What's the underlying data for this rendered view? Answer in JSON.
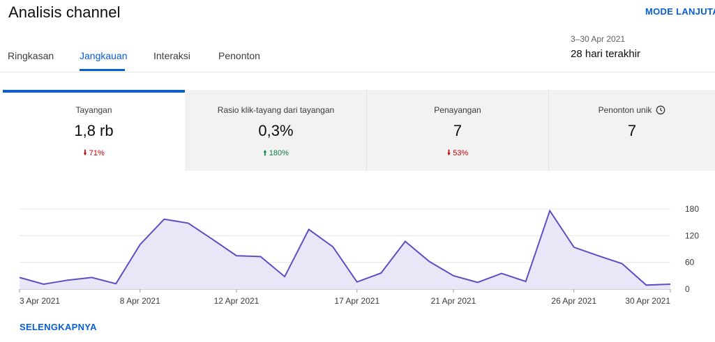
{
  "header": {
    "title": "Analisis channel",
    "advanced_mode": "MODE LANJUTAN"
  },
  "tabs": [
    {
      "label": "Ringkasan",
      "active": false
    },
    {
      "label": "Jangkauan",
      "active": true
    },
    {
      "label": "Interaksi",
      "active": false
    },
    {
      "label": "Penonton",
      "active": false
    }
  ],
  "date_range": {
    "range": "3–30 Apr 2021",
    "period": "28 hari terakhir"
  },
  "metrics": [
    {
      "label": "Tayangan",
      "value": "1,8 rb",
      "change": "71%",
      "direction": "down",
      "selected": true
    },
    {
      "label": "Rasio klik-tayang dari tayangan",
      "value": "0,3%",
      "change": "180%",
      "direction": "up",
      "selected": false
    },
    {
      "label": "Penayangan",
      "value": "7",
      "change": "53%",
      "direction": "down",
      "selected": false
    },
    {
      "label": "Penonton unik",
      "value": "7",
      "change": "",
      "direction": "",
      "selected": false,
      "icon": "clock-icon"
    }
  ],
  "chart_data": {
    "type": "area",
    "x": [
      "3 Apr",
      "4 Apr",
      "5 Apr",
      "6 Apr",
      "7 Apr",
      "8 Apr",
      "9 Apr",
      "10 Apr",
      "11 Apr",
      "12 Apr",
      "13 Apr",
      "14 Apr",
      "15 Apr",
      "16 Apr",
      "17 Apr",
      "18 Apr",
      "19 Apr",
      "20 Apr",
      "21 Apr",
      "22 Apr",
      "23 Apr",
      "24 Apr",
      "25 Apr",
      "26 Apr",
      "27 Apr",
      "28 Apr",
      "29 Apr",
      "30 Apr"
    ],
    "series": [
      {
        "values": [
          26,
          11,
          20,
          26,
          12,
          100,
          157,
          148,
          112,
          75,
          73,
          28,
          134,
          95,
          16,
          36,
          107,
          62,
          30,
          15,
          35,
          17,
          176,
          94,
          75,
          57,
          9,
          11
        ]
      }
    ],
    "x_tick_labels": [
      "3 Apr 2021",
      "8 Apr 2021",
      "12 Apr 2021",
      "17 Apr 2021",
      "21 Apr 2021",
      "26 Apr 2021",
      "30 Apr 2021"
    ],
    "x_tick_index": [
      0,
      5,
      9,
      14,
      18,
      23,
      27
    ],
    "y_ticks": [
      "180",
      "120",
      "60",
      "0"
    ],
    "y_tick_values": [
      180,
      120,
      60,
      0
    ],
    "ylim": [
      0,
      180
    ],
    "grid": true,
    "line_color": "#5b4fc4",
    "fill_color": "#e9e7f7"
  },
  "footer": {
    "see_more": "SELENGKAPNYA"
  }
}
